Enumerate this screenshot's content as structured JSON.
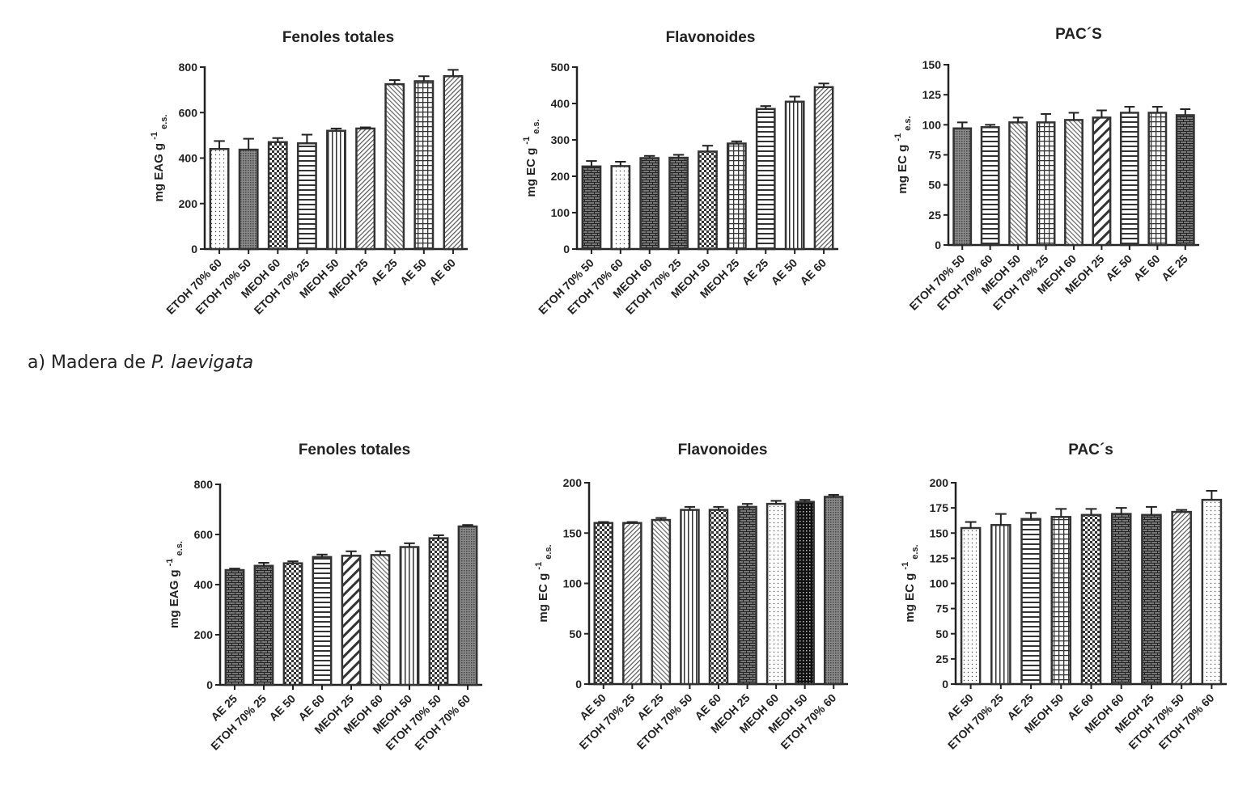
{
  "caption": {
    "prefix": "a) Madera de ",
    "species": "P. laevigata"
  },
  "colors": {
    "axis": "#222222",
    "bar_stroke": "#333333",
    "bar_fill_dark": "#555555"
  },
  "chart_data": [
    {
      "type": "bar",
      "title": "Fenoles totales",
      "ylabel": {
        "main": "mg EAG g",
        "sup": "-1",
        "sub": "e.s."
      },
      "ylim": [
        0,
        800
      ],
      "yticks": [
        0,
        200,
        400,
        600,
        800
      ],
      "categories": [
        "ETOH 70% 60",
        "ETOH 70% 50",
        "MEOH 60",
        "ETOH 70% 25",
        "MEOH 50",
        "MEOH 25",
        "AE 25",
        "AE 50",
        "AE 60"
      ],
      "values": [
        440,
        437,
        470,
        465,
        520,
        530,
        725,
        738,
        760
      ],
      "errors": [
        35,
        48,
        18,
        38,
        10,
        5,
        18,
        22,
        28
      ],
      "patterns": [
        "dots",
        "cross",
        "checker",
        "hlines",
        "vlines",
        "diag",
        "hatch",
        "grid",
        "diag"
      ]
    },
    {
      "type": "bar",
      "title": "Flavonoides",
      "ylabel": {
        "main": "mg EC g",
        "sup": "-1",
        "sub": "e.s."
      },
      "ylim": [
        0,
        500
      ],
      "yticks": [
        0,
        100,
        200,
        300,
        400,
        500
      ],
      "categories": [
        "ETOH 70% 50",
        "ETOH 70% 60",
        "MEOH 60",
        "ETOH 70% 25",
        "MEOH 50",
        "MEOH 25",
        "AE 25",
        "AE 50",
        "AE 60"
      ],
      "values": [
        227,
        228,
        250,
        251,
        268,
        290,
        385,
        405,
        445
      ],
      "errors": [
        15,
        12,
        6,
        8,
        16,
        6,
        8,
        14,
        10
      ],
      "patterns": [
        "brick",
        "dots",
        "brick",
        "brick",
        "checker",
        "grid",
        "hlines",
        "vlines",
        "diag"
      ]
    },
    {
      "type": "bar",
      "title": "PAC´S",
      "ylabel": {
        "main": "mg EC g",
        "sup": "-1",
        "sub": "e.s."
      },
      "ylim": [
        0,
        150
      ],
      "yticks": [
        0,
        25,
        50,
        75,
        100,
        125,
        150
      ],
      "categories": [
        "ETOH 70% 50",
        "ETOH 70% 60",
        "MEOH 50",
        "ETOH 70% 25",
        "MEOH 60",
        "MEOH 25",
        "AE 50",
        "AE 60",
        "AE 25"
      ],
      "values": [
        97,
        98,
        102,
        102,
        104,
        106,
        110,
        110,
        108
      ],
      "errors": [
        5,
        2,
        4,
        7,
        6,
        6,
        5,
        5,
        5
      ],
      "patterns": [
        "cross",
        "hlines",
        "hatch",
        "grid",
        "hatch",
        "diagwide",
        "hlines",
        "grid",
        "brick"
      ]
    },
    {
      "type": "bar",
      "title": "Fenoles totales",
      "ylabel": {
        "main": "mg EAG g",
        "sup": "-1",
        "sub": "e.s."
      },
      "ylim": [
        0,
        800
      ],
      "yticks": [
        0,
        200,
        400,
        600,
        800
      ],
      "categories": [
        "AE 25",
        "ETOH 70% 25",
        "AE 50",
        "AE 60",
        "MEOH 25",
        "MEOH 60",
        "MEOH 50",
        "ETOH 70% 50",
        "ETOH 70% 60"
      ],
      "values": [
        458,
        475,
        485,
        510,
        515,
        518,
        550,
        585,
        632
      ],
      "errors": [
        6,
        12,
        8,
        10,
        18,
        15,
        15,
        12,
        6
      ],
      "patterns": [
        "brick",
        "brick",
        "checker",
        "hlines",
        "diagwide",
        "hatch",
        "vlines",
        "checker",
        "cross"
      ]
    },
    {
      "type": "bar",
      "title": "Flavonoides",
      "ylabel": {
        "main": "mg EC g",
        "sup": "-1",
        "sub": "e.s."
      },
      "ylim": [
        0,
        200
      ],
      "yticks": [
        0,
        50,
        100,
        150,
        200
      ],
      "categories": [
        "AE 50",
        "ETOH 70% 25",
        "AE 25",
        "ETOH 70% 50",
        "AE 60",
        "MEOH 25",
        "MEOH 60",
        "MEOH 50",
        "ETOH 70% 60"
      ],
      "values": [
        160,
        160,
        163,
        173,
        173,
        176,
        179,
        181,
        186
      ],
      "errors": [
        1,
        1,
        2,
        3,
        3,
        3,
        3,
        2,
        2
      ],
      "patterns": [
        "checker",
        "diag",
        "hatch",
        "vlines",
        "checker",
        "brick",
        "dots",
        "blackgrid",
        "cross"
      ]
    },
    {
      "type": "bar",
      "title": "PAC´s",
      "ylabel": {
        "main": "mg EC g",
        "sup": "-1",
        "sub": "e.s."
      },
      "ylim": [
        0,
        200
      ],
      "yticks": [
        0,
        25,
        50,
        75,
        100,
        125,
        150,
        175,
        200
      ],
      "categories": [
        "AE 50",
        "ETOH 70% 25",
        "AE 25",
        "MEOH 50",
        "AE 60",
        "MEOH 60",
        "MEOH 25",
        "ETOH 70% 50",
        "ETOH 70% 60"
      ],
      "values": [
        155,
        158,
        164,
        166,
        168,
        169,
        168,
        171,
        183
      ],
      "errors": [
        6,
        11,
        6,
        8,
        6,
        6,
        8,
        2,
        9
      ],
      "patterns": [
        "dots",
        "vlines",
        "hlines",
        "grid",
        "checker",
        "brick",
        "brick",
        "diag",
        "dots"
      ]
    }
  ]
}
